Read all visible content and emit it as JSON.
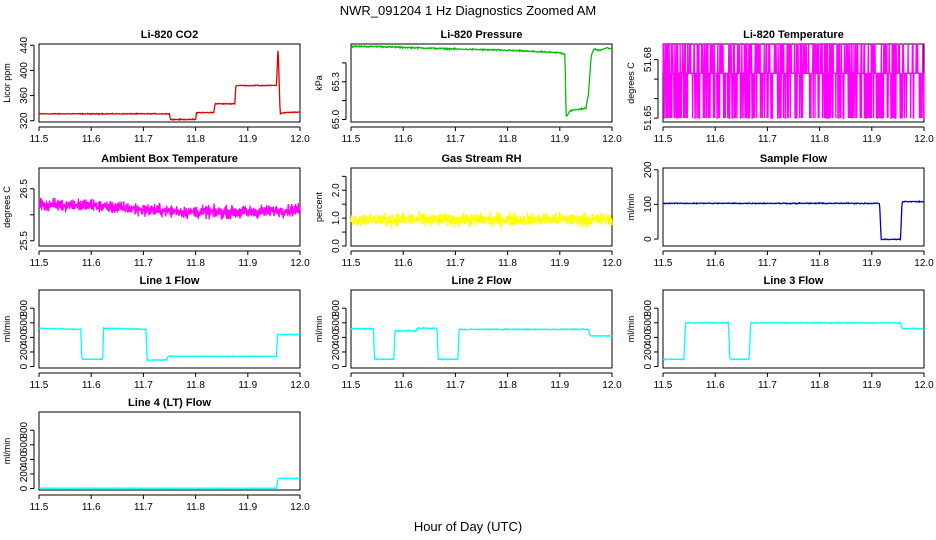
{
  "figure": {
    "title": "NWR_091204  1 Hz Diagnostics Zoomed AM",
    "xlabel": "Hour of Day (UTC)"
  },
  "chart_data": [
    {
      "type": "line",
      "title": "Li-820 CO2",
      "ylabel": "Licor ppm",
      "color": "#e00000",
      "xlim": [
        11.5,
        12.0
      ],
      "ylim": [
        318,
        442
      ],
      "x_ticks": [
        "11.5",
        "11.6",
        "11.7",
        "11.8",
        "11.9",
        "12.0"
      ],
      "y_ticks": [
        {
          "v": 320,
          "t": "320"
        },
        {
          "v": 360,
          "t": "360"
        },
        {
          "v": 400,
          "t": "400"
        },
        {
          "v": 440,
          "t": "440"
        }
      ],
      "noise": 1,
      "x": [
        11.5,
        11.75,
        11.752,
        11.8,
        11.802,
        11.835,
        11.837,
        11.875,
        11.877,
        11.955,
        11.958,
        11.962,
        11.97,
        12.0
      ],
      "y": [
        331,
        331,
        322,
        322,
        333,
        333,
        347,
        347,
        376,
        376,
        438,
        331,
        333,
        334
      ]
    },
    {
      "type": "line",
      "title": "Li-820 Pressure",
      "ylabel": "kPa",
      "color": "#00c000",
      "xlim": [
        11.5,
        12.0
      ],
      "ylim": [
        64.98,
        65.6
      ],
      "x_ticks": [
        "11.5",
        "11.6",
        "11.7",
        "11.8",
        "11.9",
        "12.0"
      ],
      "y_ticks": [
        {
          "v": 65.0,
          "t": "65.0"
        },
        {
          "v": 65.15,
          "t": ""
        },
        {
          "v": 65.3,
          "t": "65.3"
        },
        {
          "v": 65.45,
          "t": ""
        }
      ],
      "noise": 0.008,
      "x": [
        11.5,
        11.55,
        11.7,
        11.8,
        11.85,
        11.9,
        11.91,
        11.912,
        11.92,
        11.935,
        11.95,
        11.955,
        11.96,
        11.965,
        11.975,
        11.99,
        12.0
      ],
      "y": [
        65.58,
        65.58,
        65.56,
        65.55,
        65.54,
        65.53,
        65.52,
        65.02,
        65.07,
        65.08,
        65.09,
        65.2,
        65.5,
        65.56,
        65.55,
        65.57,
        65.56
      ]
    },
    {
      "type": "line",
      "title": "Li-820 Temperature",
      "ylabel": "degrees C",
      "color": "#ff00ff",
      "xlim": [
        11.5,
        12.0
      ],
      "ylim": [
        51.648,
        51.688
      ],
      "x_ticks": [
        "11.5",
        "11.6",
        "11.7",
        "11.8",
        "11.9",
        "12.0"
      ],
      "y_ticks": [
        {
          "v": 51.65,
          "t": "51.65"
        },
        {
          "v": 51.66,
          "t": ""
        },
        {
          "v": 51.67,
          "t": ""
        },
        {
          "v": 51.68,
          "t": "51.68"
        }
      ],
      "levels": [
        51.65,
        51.673,
        51.688
      ],
      "level_weights": [
        0.2,
        0.6,
        0.2
      ],
      "samples": 900,
      "x": [
        11.5,
        12.0
      ],
      "y": [
        51.673,
        51.673
      ]
    },
    {
      "type": "line",
      "title": "Ambient Box Temperature",
      "ylabel": "degrees C",
      "color": "#ff00ff",
      "xlim": [
        11.5,
        12.0
      ],
      "ylim": [
        25.4,
        26.9
      ],
      "x_ticks": [
        "11.5",
        "11.6",
        "11.7",
        "11.8",
        "11.9",
        "12.0"
      ],
      "y_ticks": [
        {
          "v": 25.5,
          "t": "25.5"
        },
        {
          "v": 26.0,
          "t": ""
        },
        {
          "v": 26.5,
          "t": "26.5"
        }
      ],
      "noise": 0.18,
      "samples": 900,
      "x": [
        11.5,
        11.6,
        11.7,
        11.8,
        11.9,
        12.0
      ],
      "y": [
        26.2,
        26.18,
        26.1,
        26.05,
        26.05,
        26.1
      ]
    },
    {
      "type": "line",
      "title": "Gas Stream RH",
      "ylabel": "percent",
      "color": "#ffff00",
      "xlim": [
        11.5,
        12.0
      ],
      "ylim": [
        0,
        2.8
      ],
      "x_ticks": [
        "11.5",
        "11.6",
        "11.7",
        "11.8",
        "11.9",
        "12.0"
      ],
      "y_ticks": [
        {
          "v": 0,
          "t": "0.0"
        },
        {
          "v": 0.5,
          "t": ""
        },
        {
          "v": 1.0,
          "t": "1.0"
        },
        {
          "v": 1.5,
          "t": ""
        },
        {
          "v": 2.0,
          "t": "2.0"
        },
        {
          "v": 2.5,
          "t": ""
        }
      ],
      "noise": 0.35,
      "samples": 900,
      "x": [
        11.5,
        11.7,
        11.9,
        12.0
      ],
      "y": [
        0.95,
        0.95,
        0.95,
        0.95
      ]
    },
    {
      "type": "line",
      "title": "Sample Flow",
      "ylabel": "ml/min",
      "color": "#0000cc",
      "xlim": [
        11.5,
        12.0
      ],
      "ylim": [
        -20,
        205
      ],
      "x_ticks": [
        "11.5",
        "11.6",
        "11.7",
        "11.8",
        "11.9",
        "12.0"
      ],
      "y_ticks": [
        {
          "v": 0,
          "t": "0"
        },
        {
          "v": 100,
          "t": "100"
        },
        {
          "v": 200,
          "t": "200"
        }
      ],
      "noise": 2,
      "x": [
        11.5,
        11.915,
        11.918,
        11.955,
        11.958,
        12.0
      ],
      "y": [
        103,
        103,
        -1,
        -1,
        108,
        108
      ]
    },
    {
      "type": "line",
      "title": "Line 1 Flow",
      "ylabel": "ml/min",
      "color": "#00ffff",
      "xlim": [
        11.5,
        12.0
      ],
      "ylim": [
        -20,
        1050
      ],
      "x_ticks": [
        "11.5",
        "11.6",
        "11.7",
        "11.8",
        "11.9",
        "12.0"
      ],
      "y_ticks": [
        {
          "v": 0,
          "t": "0"
        },
        {
          "v": 200,
          "t": "200"
        },
        {
          "v": 400,
          "t": "400"
        },
        {
          "v": 600,
          "t": "600"
        },
        {
          "v": 800,
          "t": "800"
        }
      ],
      "noise": 8,
      "x": [
        11.5,
        11.58,
        11.582,
        11.622,
        11.624,
        11.705,
        11.707,
        11.745,
        11.747,
        11.955,
        11.957,
        12.0
      ],
      "y": [
        525,
        510,
        100,
        100,
        525,
        510,
        90,
        90,
        140,
        140,
        440,
        440
      ]
    },
    {
      "type": "line",
      "title": "Line 2 Flow",
      "ylabel": "ml/min",
      "color": "#00ffff",
      "xlim": [
        11.5,
        12.0
      ],
      "ylim": [
        -20,
        1050
      ],
      "x_ticks": [
        "11.5",
        "11.6",
        "11.7",
        "11.8",
        "11.9",
        "12.0"
      ],
      "y_ticks": [
        {
          "v": 0,
          "t": "0"
        },
        {
          "v": 200,
          "t": "200"
        },
        {
          "v": 400,
          "t": "400"
        },
        {
          "v": 600,
          "t": "600"
        },
        {
          "v": 800,
          "t": "800"
        }
      ],
      "noise": 10,
      "x": [
        11.5,
        11.543,
        11.545,
        11.582,
        11.584,
        11.625,
        11.627,
        11.665,
        11.667,
        11.705,
        11.707,
        11.955,
        11.958,
        12.0
      ],
      "y": [
        520,
        520,
        100,
        100,
        490,
        490,
        525,
        525,
        100,
        100,
        510,
        510,
        420,
        420
      ]
    },
    {
      "type": "line",
      "title": "Line 3 Flow",
      "ylabel": "ml/min",
      "color": "#00ffff",
      "xlim": [
        11.5,
        12.0
      ],
      "ylim": [
        -20,
        1050
      ],
      "x_ticks": [
        "11.5",
        "11.6",
        "11.7",
        "11.8",
        "11.9",
        "12.0"
      ],
      "y_ticks": [
        {
          "v": 0,
          "t": "0"
        },
        {
          "v": 200,
          "t": "200"
        },
        {
          "v": 400,
          "t": "400"
        },
        {
          "v": 600,
          "t": "600"
        },
        {
          "v": 800,
          "t": "800"
        }
      ],
      "noise": 10,
      "x": [
        11.5,
        11.54,
        11.543,
        11.625,
        11.628,
        11.665,
        11.668,
        11.955,
        11.958,
        12.0
      ],
      "y": [
        100,
        100,
        600,
        600,
        100,
        100,
        600,
        600,
        520,
        520
      ]
    },
    {
      "type": "line",
      "title": "Line 4 (LT) Flow",
      "ylabel": "ml/min",
      "color": "#00ffff",
      "xlim": [
        11.5,
        12.0
      ],
      "ylim": [
        -20,
        1050
      ],
      "x_ticks": [
        "11.5",
        "11.6",
        "11.7",
        "11.8",
        "11.9",
        "12.0"
      ],
      "y_ticks": [
        {
          "v": 0,
          "t": "0"
        },
        {
          "v": 200,
          "t": "200"
        },
        {
          "v": 400,
          "t": "400"
        },
        {
          "v": 600,
          "t": "600"
        },
        {
          "v": 800,
          "t": "800"
        }
      ],
      "noise": 2,
      "x": [
        11.5,
        11.955,
        11.958,
        11.96,
        11.97,
        12.0
      ],
      "y": [
        5,
        5,
        130,
        140,
        140,
        140
      ]
    }
  ]
}
